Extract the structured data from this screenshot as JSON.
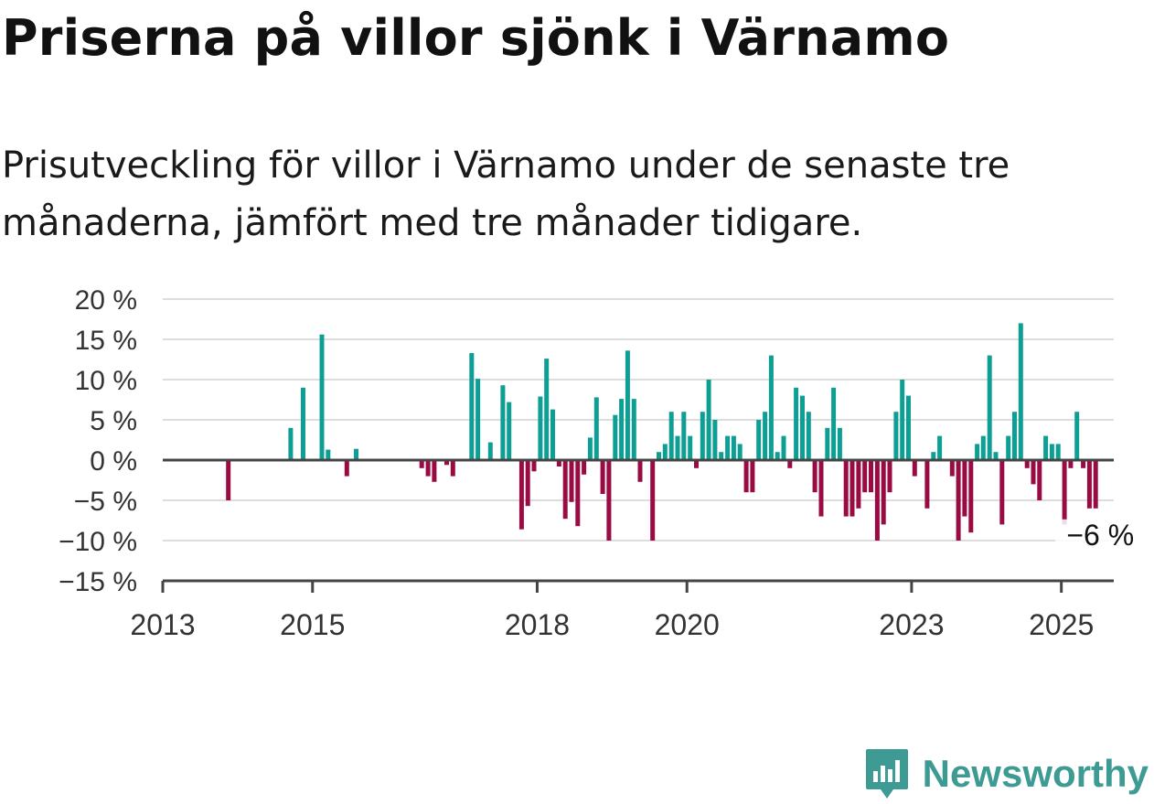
{
  "title": "Priserna på villor sjönk i Värnamo",
  "subtitle": "Prisutveckling för villor i Värnamo under de senaste tre månaderna, jämfört med tre månader tidigare.",
  "brand": {
    "name": "Newsworthy",
    "icon": "newsworthy-logo-icon"
  },
  "colors": {
    "positive": "#0e9f94",
    "negative": "#9a0a43",
    "grid": "#dddddd",
    "axis": "#444444"
  },
  "chart_data": {
    "type": "bar",
    "y_ticks": [
      "20 %",
      "15 %",
      "10 %",
      "5 %",
      "0 %",
      "−5 %",
      "−10 %",
      "−15 %"
    ],
    "y_tick_values": [
      20,
      15,
      10,
      5,
      0,
      -5,
      -10,
      -15
    ],
    "ylim": [
      -15,
      20
    ],
    "x_ticks": [
      "2013",
      "2015",
      "2018",
      "2020",
      "2023",
      "2025"
    ],
    "x_tick_values": [
      2013.0,
      2015.0,
      2018.0,
      2020.0,
      2023.0,
      2025.0
    ],
    "xlim": [
      2013.0,
      2025.7
    ],
    "end_label": "−6 %",
    "unit": "%",
    "x": [
      2013.875,
      2014.708,
      2014.875,
      2015.125,
      2015.208,
      2015.458,
      2015.583,
      2016.458,
      2016.542,
      2016.625,
      2016.792,
      2016.875,
      2017.125,
      2017.208,
      2017.375,
      2017.542,
      2017.625,
      2017.792,
      2017.875,
      2017.958,
      2018.042,
      2018.125,
      2018.208,
      2018.292,
      2018.375,
      2018.458,
      2018.542,
      2018.625,
      2018.708,
      2018.792,
      2018.875,
      2018.958,
      2019.042,
      2019.125,
      2019.208,
      2019.292,
      2019.375,
      2019.542,
      2019.625,
      2019.708,
      2019.792,
      2019.875,
      2019.958,
      2020.042,
      2020.125,
      2020.208,
      2020.292,
      2020.375,
      2020.458,
      2020.542,
      2020.625,
      2020.708,
      2020.792,
      2020.875,
      2020.958,
      2021.042,
      2021.125,
      2021.208,
      2021.292,
      2021.375,
      2021.458,
      2021.542,
      2021.625,
      2021.708,
      2021.792,
      2021.875,
      2021.958,
      2022.042,
      2022.125,
      2022.208,
      2022.292,
      2022.375,
      2022.458,
      2022.542,
      2022.625,
      2022.708,
      2022.792,
      2022.875,
      2022.958,
      2023.042,
      2023.208,
      2023.292,
      2023.375,
      2023.542,
      2023.625,
      2023.708,
      2023.792,
      2023.875,
      2023.958,
      2024.042,
      2024.125,
      2024.208,
      2024.292,
      2024.375,
      2024.458,
      2024.542,
      2024.625,
      2024.708,
      2024.792,
      2024.875,
      2024.958,
      2025.042,
      2025.125,
      2025.208,
      2025.292,
      2025.375,
      2025.458
    ],
    "series": [
      {
        "values": [
          -5,
          4,
          9,
          15.6,
          1.3,
          -2,
          1.4,
          -1,
          -2,
          -2.7,
          -0.6,
          -2,
          13.3,
          10.1,
          2.2,
          9.3,
          7.2,
          -8.6,
          -5.7,
          -1.4,
          7.9,
          12.6,
          6.3,
          -0.8,
          -7.3,
          -5.2,
          -8.2,
          -1.8,
          2.8,
          7.8,
          -4.2,
          -10,
          5.6,
          7.6,
          13.6,
          7.6,
          -2.7,
          -10,
          1,
          2,
          6,
          3,
          6,
          3,
          -1,
          6,
          10,
          5,
          1,
          3,
          3,
          2,
          -4,
          -4,
          5,
          6,
          13,
          1,
          3,
          -1,
          9,
          8,
          6,
          -4,
          -7,
          4,
          9,
          4,
          -7,
          -7,
          -6,
          -4,
          -4,
          -10,
          -8,
          -4,
          6,
          10,
          8,
          -2,
          -6,
          1,
          3,
          -2,
          -10,
          -7,
          -9,
          2,
          3,
          13,
          1,
          -8,
          3,
          6,
          17,
          -1,
          -3,
          -5,
          3,
          2,
          2,
          -8,
          -1,
          6,
          -1,
          -6,
          -6
        ]
      }
    ]
  }
}
